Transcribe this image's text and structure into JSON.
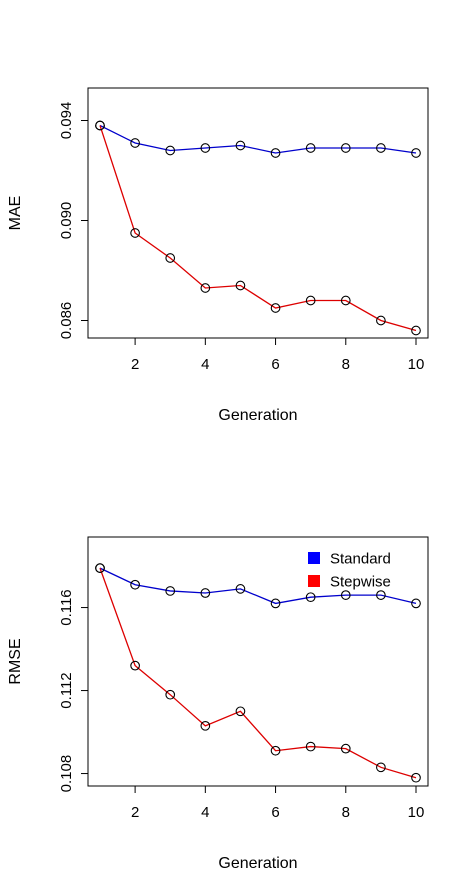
{
  "chart_data": [
    {
      "type": "line",
      "title": "",
      "xlabel": "Generation",
      "ylabel": "MAE",
      "x": [
        1,
        2,
        3,
        4,
        5,
        6,
        7,
        8,
        9,
        10
      ],
      "xlim": [
        1,
        10
      ],
      "ylim": [
        0.0853,
        0.0953
      ],
      "xticks": [
        2,
        4,
        6,
        8,
        10
      ],
      "yticks": [
        0.086,
        0.09,
        0.094
      ],
      "ytick_labels": [
        "0.086",
        "0.090",
        "0.094"
      ],
      "xtick_labels": [
        "2",
        "4",
        "6",
        "8",
        "10"
      ],
      "series": [
        {
          "name": "Standard",
          "color": "#0000cc",
          "values": [
            0.0938,
            0.0931,
            0.0928,
            0.0929,
            0.093,
            0.0927,
            0.0929,
            0.0929,
            0.0929,
            0.0927
          ]
        },
        {
          "name": "Stepwise",
          "color": "#dd0000",
          "values": [
            0.0938,
            0.0895,
            0.0885,
            0.0873,
            0.0874,
            0.0865,
            0.0868,
            0.0868,
            0.086,
            0.0856
          ]
        }
      ],
      "markers": "open-circle",
      "grid": false,
      "legend": false
    },
    {
      "type": "line",
      "title": "",
      "xlabel": "Generation",
      "ylabel": "RMSE",
      "x": [
        1,
        2,
        3,
        4,
        5,
        6,
        7,
        8,
        9,
        10
      ],
      "xlim": [
        1,
        10
      ],
      "ylim": [
        0.1074,
        0.1194
      ],
      "xticks": [
        2,
        4,
        6,
        8,
        10
      ],
      "yticks": [
        0.108,
        0.112,
        0.116
      ],
      "ytick_labels": [
        "0.108",
        "0.112",
        "0.116"
      ],
      "xtick_labels": [
        "2",
        "4",
        "6",
        "8",
        "10"
      ],
      "series": [
        {
          "name": "Standard",
          "color": "#0000cc",
          "values": [
            0.1179,
            0.1171,
            0.1168,
            0.1167,
            0.1169,
            0.1162,
            0.1165,
            0.1166,
            0.1166,
            0.1162
          ]
        },
        {
          "name": "Stepwise",
          "color": "#dd0000",
          "values": [
            0.1179,
            0.1132,
            0.1118,
            0.1103,
            0.111,
            0.1091,
            0.1093,
            0.1092,
            0.1083,
            0.1078
          ]
        }
      ],
      "markers": "open-circle",
      "grid": false,
      "legend": true,
      "legend_position": "top-right",
      "legend_entries": [
        {
          "label": "Standard",
          "color": "#0000ff"
        },
        {
          "label": "Stepwise",
          "color": "#ff0000"
        }
      ]
    }
  ]
}
